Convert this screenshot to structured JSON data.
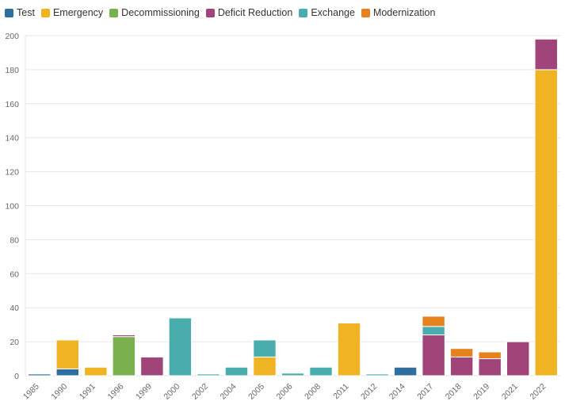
{
  "chart_data": {
    "type": "bar",
    "stacked": true,
    "categories": [
      "1985",
      "1990",
      "1991",
      "1996",
      "1999",
      "2000",
      "2002",
      "2004",
      "2005",
      "2006",
      "2008",
      "2011",
      "2012",
      "2014",
      "2017",
      "2018",
      "2019",
      "2021",
      "2022"
    ],
    "series": [
      {
        "name": "Test",
        "color": "#2f6f9f",
        "values": [
          1,
          4,
          0,
          0,
          0,
          0,
          0,
          0,
          0,
          0,
          0,
          0,
          0,
          5,
          0,
          0,
          0,
          0,
          0
        ]
      },
      {
        "name": "Emergency",
        "color": "#f0b323",
        "values": [
          0,
          17,
          5,
          0,
          0,
          0,
          0,
          0,
          11,
          0,
          0,
          31,
          0,
          0,
          0,
          0,
          0,
          0,
          180
        ]
      },
      {
        "name": "Decommissioning",
        "color": "#7bb04f",
        "values": [
          0,
          0,
          0,
          23,
          0,
          0,
          0,
          0,
          0,
          0,
          0,
          0,
          0,
          0,
          0,
          0,
          0,
          0,
          0
        ]
      },
      {
        "name": "Deficit Reduction",
        "color": "#a0447a",
        "values": [
          0,
          0,
          0,
          1,
          11,
          0,
          0,
          0,
          0,
          0,
          0,
          0,
          0,
          0,
          24,
          11,
          10,
          20,
          18
        ]
      },
      {
        "name": "Exchange",
        "color": "#4aadad",
        "values": [
          0,
          0,
          0,
          0,
          0,
          34,
          1,
          5,
          10,
          1.5,
          5,
          0,
          1,
          0,
          5,
          0,
          0,
          0,
          0
        ]
      },
      {
        "name": "Modernization",
        "color": "#e5821e",
        "values": [
          0,
          0,
          0,
          0,
          0,
          0,
          0,
          0,
          0,
          0,
          0,
          0,
          0,
          0,
          6,
          5,
          4,
          0,
          0
        ]
      }
    ],
    "ylim": [
      0,
      200
    ],
    "yticks": [
      "0",
      "20",
      "40",
      "60",
      "80",
      "100",
      "120",
      "140",
      "160",
      "180",
      "200"
    ],
    "grid": true,
    "legend": "top-left"
  }
}
